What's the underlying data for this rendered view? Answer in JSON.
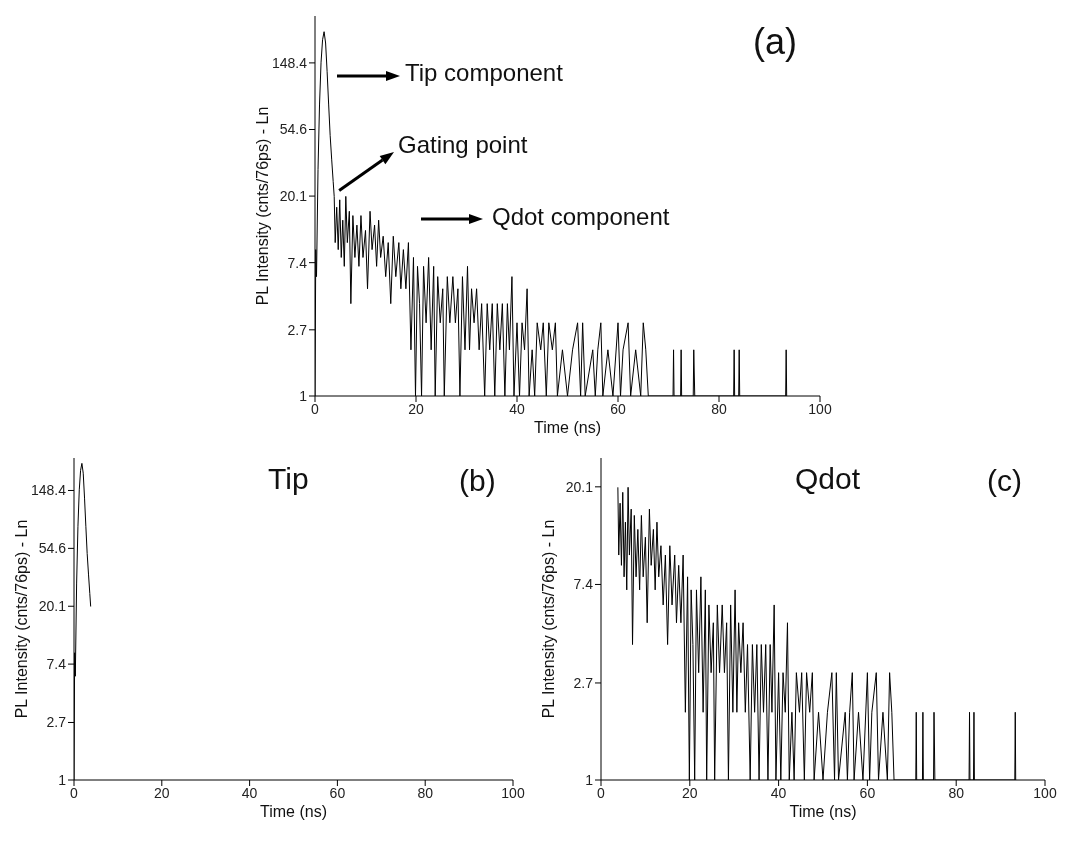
{
  "chart_data": [
    {
      "type": "line",
      "xlabel": "Time (ns)",
      "ylabel": "PL Intensity (cnts/76ps) - Ln",
      "log": true,
      "xlim": [
        0,
        100
      ],
      "xticks": [
        0,
        20,
        40,
        60,
        80,
        100
      ],
      "ylim": [
        1,
        300
      ],
      "yticks": [
        1,
        2.7,
        7.4,
        20.1,
        54.6,
        148.4
      ],
      "annotations": [
        "(a)",
        "Tip component",
        {
          "text": "Gating point",
          "x": 3.8,
          "y": 20
        },
        "Qdot component"
      ],
      "series": [
        {
          "color": "#000000",
          "x": [
            0,
            0.15,
            0.3,
            0.6,
            0.9,
            1.2,
            1.5,
            1.8,
            2.1,
            2.4,
            2.7,
            3.0,
            3.3,
            3.6,
            3.8,
            4.0,
            4.3,
            4.6,
            4.9,
            5.2,
            5.5,
            5.8,
            6.1,
            6.4,
            6.8,
            7.1,
            7.5,
            7.9,
            8.3,
            8.7,
            9.1,
            9.5,
            10.0,
            10.4,
            10.9,
            11.3,
            11.8,
            12.2,
            12.6,
            13.0,
            13.5,
            14.0,
            14.5,
            15.0,
            15.5,
            16.0,
            16.6,
            17.0,
            17.5,
            18.0,
            18.5,
            19.0,
            19.5,
            19.9,
            20.3,
            20.7,
            21.1,
            21.5,
            22.0,
            22.5,
            23.0,
            23.5,
            23.8,
            24.3,
            24.8,
            25.3,
            25.6,
            26.2,
            26.7,
            27.3,
            27.8,
            28.3,
            28.7,
            29.2,
            29.7,
            30.2,
            30.6,
            31.0,
            31.5,
            32.0,
            32.5,
            33.0,
            33.6,
            34.1,
            34.6,
            35.1,
            35.6,
            36.1,
            36.6,
            37.1,
            37.6,
            38.1,
            38.5,
            39.0,
            39.4,
            40.0,
            40.5,
            41.0,
            41.5,
            42.0,
            42.4,
            43.0,
            43.5,
            44.0,
            44.7,
            45.2,
            45.8,
            46.3,
            47.0,
            47.6,
            48.0,
            49.0,
            50.0,
            51.0,
            52.0,
            52.6,
            53.0,
            53.5,
            55.0,
            55.5,
            56.0,
            56.6,
            57.0,
            58.0,
            59.0,
            60.0,
            60.5,
            61.0,
            62.0,
            62.5,
            63.5,
            64.5,
            65.0,
            65.5,
            66.0,
            70.9,
            71.0,
            71.1,
            72.4,
            72.5,
            72.6,
            74.9,
            75.0,
            75.2,
            82.9,
            83.0,
            83.1,
            83.9,
            84.0,
            84.1,
            93.2,
            93.3,
            93.4
          ],
          "values": [
            1,
            9,
            6,
            30,
            80,
            150,
            210,
            237,
            200,
            130,
            80,
            50,
            35,
            25,
            20,
            10,
            17,
            9,
            19,
            8,
            14,
            7,
            20,
            10,
            16,
            4,
            15,
            8,
            13,
            7,
            15,
            8,
            12,
            5,
            16,
            9,
            13,
            7,
            14,
            8,
            11,
            6,
            10,
            4,
            11,
            6,
            10,
            5,
            9,
            5,
            10,
            2,
            8,
            1,
            7,
            4,
            1,
            7,
            3,
            8,
            2,
            7,
            1,
            6,
            3,
            5,
            1,
            6,
            3,
            6,
            3,
            5,
            1,
            6,
            2,
            7,
            2,
            5,
            3,
            5,
            2,
            4,
            1,
            4,
            2,
            4,
            1,
            4,
            2,
            4,
            1,
            4,
            2,
            6,
            1,
            3,
            1,
            3,
            2,
            5,
            1,
            2,
            1,
            3,
            2,
            3,
            1,
            3,
            2,
            3,
            1,
            2,
            1,
            2,
            3,
            1,
            3,
            1,
            2,
            1,
            2,
            3,
            1,
            2,
            1,
            3,
            1,
            2,
            3,
            1,
            2,
            1,
            3,
            2,
            1,
            1,
            2,
            1,
            1,
            2,
            1,
            1,
            2,
            1,
            1,
            2,
            1,
            1,
            2,
            1,
            1,
            2,
            1
          ]
        }
      ]
    },
    {
      "type": "line",
      "title": "Tip",
      "xlabel": "Time (ns)",
      "ylabel": "PL Intensity (cnts/76ps) - Ln",
      "log": true,
      "xlim": [
        0,
        100
      ],
      "xticks": [
        0,
        20,
        40,
        60,
        80,
        100
      ],
      "ylim": [
        1,
        260
      ],
      "yticks": [
        1,
        2.7,
        7.4,
        20.1,
        54.6,
        148.4
      ],
      "annotations": [
        "(b)"
      ],
      "series": [
        {
          "color": "#000000",
          "x": [
            0,
            0.15,
            0.3,
            0.6,
            0.9,
            1.2,
            1.5,
            1.8,
            2.1,
            2.4,
            2.7,
            3.0,
            3.3,
            3.6,
            3.8
          ],
          "values": [
            1,
            9,
            6,
            30,
            80,
            150,
            210,
            237,
            200,
            130,
            80,
            50,
            35,
            25,
            20
          ]
        }
      ]
    },
    {
      "type": "line",
      "title": "Qdot",
      "xlabel": "Time (ns)",
      "ylabel": "PL Intensity (cnts/76ps) - Ln",
      "log": true,
      "xlim": [
        0,
        100
      ],
      "xticks": [
        0,
        20,
        40,
        60,
        80,
        100
      ],
      "ylim": [
        1,
        27
      ],
      "yticks": [
        1,
        2.7,
        7.4,
        20.1
      ],
      "annotations": [
        "(c)"
      ],
      "series": [
        {
          "color": "#000000",
          "x": [
            3.8,
            4.0,
            4.3,
            4.6,
            4.9,
            5.2,
            5.5,
            5.8,
            6.1,
            6.4,
            6.8,
            7.1,
            7.5,
            7.9,
            8.3,
            8.7,
            9.1,
            9.5,
            10.0,
            10.4,
            10.9,
            11.3,
            11.8,
            12.2,
            12.6,
            13.0,
            13.5,
            14.0,
            14.5,
            15.0,
            15.5,
            16.0,
            16.6,
            17.0,
            17.5,
            18.0,
            18.5,
            19.0,
            19.5,
            19.9,
            20.3,
            20.7,
            21.1,
            21.5,
            22.0,
            22.5,
            23.0,
            23.5,
            23.8,
            24.3,
            24.8,
            25.3,
            25.6,
            26.2,
            26.7,
            27.3,
            27.8,
            28.3,
            28.7,
            29.2,
            29.7,
            30.2,
            30.6,
            31.0,
            31.5,
            32.0,
            32.5,
            33.0,
            33.6,
            34.1,
            34.6,
            35.1,
            35.6,
            36.1,
            36.6,
            37.1,
            37.6,
            38.1,
            38.5,
            39.0,
            39.4,
            40.0,
            40.5,
            41.0,
            41.5,
            42.0,
            42.4,
            43.0,
            43.5,
            44.0,
            44.7,
            45.2,
            45.8,
            46.3,
            47.0,
            47.6,
            48.0,
            49.0,
            50.0,
            51.0,
            52.0,
            52.6,
            53.0,
            53.5,
            55.0,
            55.5,
            56.0,
            56.6,
            57.0,
            58.0,
            59.0,
            60.0,
            60.5,
            61.0,
            62.0,
            62.5,
            63.5,
            64.5,
            65.0,
            65.5,
            66.0,
            70.9,
            71.0,
            71.1,
            72.4,
            72.5,
            72.6,
            74.9,
            75.0,
            75.2,
            82.9,
            83.0,
            83.1,
            83.9,
            84.0,
            84.1,
            93.2,
            93.3,
            93.4
          ],
          "values": [
            20,
            10,
            17,
            9,
            19,
            8,
            14,
            7,
            20,
            10,
            16,
            4,
            15,
            8,
            13,
            7,
            15,
            8,
            12,
            5,
            16,
            9,
            13,
            7,
            14,
            8,
            11,
            6,
            10,
            4,
            11,
            6,
            10,
            5,
            9,
            5,
            10,
            2,
            8,
            1,
            7,
            4,
            1,
            7,
            3,
            8,
            2,
            7,
            1,
            6,
            3,
            5,
            1,
            6,
            3,
            6,
            3,
            5,
            1,
            6,
            2,
            7,
            2,
            5,
            3,
            5,
            2,
            4,
            1,
            4,
            2,
            4,
            1,
            4,
            2,
            4,
            1,
            4,
            2,
            6,
            1,
            3,
            1,
            3,
            2,
            5,
            1,
            2,
            1,
            3,
            2,
            3,
            1,
            3,
            2,
            3,
            1,
            2,
            1,
            2,
            3,
            1,
            3,
            1,
            2,
            1,
            2,
            3,
            1,
            2,
            1,
            3,
            1,
            2,
            3,
            1,
            2,
            1,
            3,
            2,
            1,
            1,
            2,
            1,
            1,
            2,
            1,
            1,
            2,
            1,
            1,
            2,
            1,
            1,
            2,
            1,
            1,
            2,
            1
          ]
        }
      ]
    }
  ]
}
